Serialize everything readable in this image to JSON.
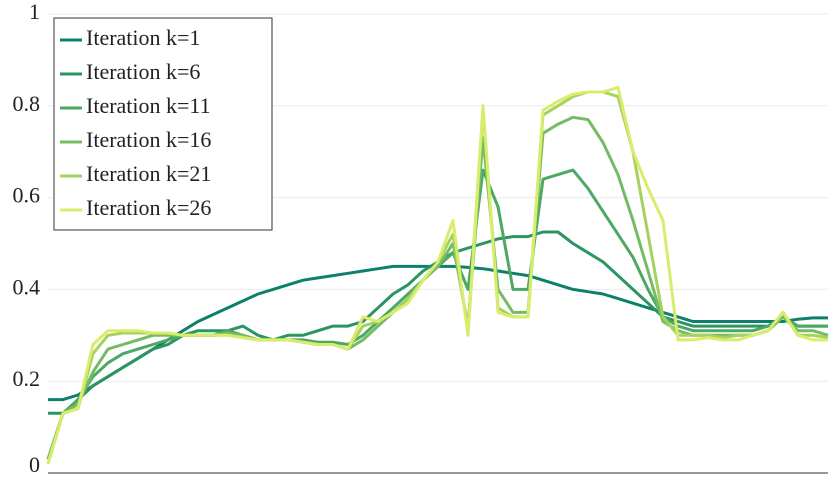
{
  "chart_data": {
    "type": "line",
    "categories": [
      null,
      null,
      null,
      null,
      null,
      null,
      null,
      null,
      null,
      null,
      null,
      null,
      null,
      null,
      null,
      null,
      null,
      null,
      null,
      null,
      null,
      null,
      null,
      null,
      null,
      null,
      null,
      null,
      null,
      null,
      null,
      null,
      null,
      null,
      null,
      null,
      null,
      null,
      null,
      null,
      null,
      null,
      null,
      null,
      null,
      null,
      null,
      null,
      null,
      null,
      null,
      null,
      null
    ],
    "ylim": [
      0,
      1
    ],
    "yticks": [
      0,
      0.2,
      0.4,
      0.6,
      0.8,
      1
    ],
    "grid": true,
    "legend": "upper left",
    "series": [
      {
        "name": "Iteration k=1",
        "color": "#0e7f6b",
        "values": [
          0.16,
          0.16,
          0.17,
          0.19,
          0.21,
          0.23,
          0.25,
          0.27,
          0.29,
          0.31,
          0.33,
          0.345,
          0.36,
          0.375,
          0.39,
          0.4,
          0.41,
          0.42,
          0.425,
          0.43,
          0.435,
          0.44,
          0.445,
          0.45,
          0.45,
          0.45,
          0.45,
          0.45,
          0.448,
          0.445,
          0.44,
          0.435,
          0.43,
          0.42,
          0.41,
          0.4,
          0.395,
          0.39,
          0.38,
          0.37,
          0.36,
          0.35,
          0.34,
          0.33,
          0.33,
          0.33,
          0.33,
          0.33,
          0.33,
          0.33,
          0.335,
          0.338,
          0.338
        ]
      },
      {
        "name": "Iteration k=6",
        "color": "#2b9562",
        "values": [
          0.13,
          0.13,
          0.16,
          0.19,
          0.21,
          0.23,
          0.25,
          0.27,
          0.28,
          0.3,
          0.31,
          0.31,
          0.31,
          0.32,
          0.3,
          0.29,
          0.3,
          0.3,
          0.31,
          0.32,
          0.32,
          0.33,
          0.36,
          0.39,
          0.41,
          0.44,
          0.46,
          0.48,
          0.49,
          0.5,
          0.51,
          0.515,
          0.515,
          0.525,
          0.525,
          0.5,
          0.48,
          0.46,
          0.43,
          0.4,
          0.37,
          0.34,
          0.33,
          0.32,
          0.32,
          0.32,
          0.32,
          0.32,
          0.32,
          0.34,
          0.32,
          0.32,
          0.32
        ]
      },
      {
        "name": "Iteration k=11",
        "color": "#4ca862",
        "values": [
          0.03,
          0.13,
          0.16,
          0.21,
          0.24,
          0.26,
          0.27,
          0.28,
          0.29,
          0.3,
          0.3,
          0.3,
          0.31,
          0.3,
          0.29,
          0.29,
          0.29,
          0.29,
          0.285,
          0.285,
          0.28,
          0.3,
          0.33,
          0.36,
          0.39,
          0.42,
          0.45,
          0.48,
          0.4,
          0.66,
          0.58,
          0.4,
          0.4,
          0.64,
          0.65,
          0.66,
          0.62,
          0.57,
          0.52,
          0.47,
          0.4,
          0.34,
          0.32,
          0.31,
          0.31,
          0.31,
          0.31,
          0.31,
          0.32,
          0.34,
          0.32,
          0.32,
          0.32
        ]
      },
      {
        "name": "Iteration k=16",
        "color": "#74bb64",
        "values": [
          0.03,
          0.13,
          0.15,
          0.22,
          0.27,
          0.28,
          0.29,
          0.3,
          0.3,
          0.3,
          0.3,
          0.3,
          0.305,
          0.3,
          0.29,
          0.29,
          0.29,
          0.285,
          0.28,
          0.28,
          0.27,
          0.29,
          0.32,
          0.35,
          0.38,
          0.42,
          0.45,
          0.5,
          0.32,
          0.73,
          0.4,
          0.35,
          0.35,
          0.74,
          0.76,
          0.775,
          0.77,
          0.72,
          0.65,
          0.55,
          0.44,
          0.33,
          0.31,
          0.3,
          0.3,
          0.3,
          0.3,
          0.3,
          0.31,
          0.34,
          0.31,
          0.31,
          0.3
        ]
      },
      {
        "name": "Iteration k=21",
        "color": "#a5d25e",
        "values": [
          0.02,
          0.13,
          0.14,
          0.26,
          0.3,
          0.305,
          0.305,
          0.305,
          0.305,
          0.3,
          0.3,
          0.3,
          0.3,
          0.295,
          0.29,
          0.29,
          0.29,
          0.285,
          0.28,
          0.28,
          0.27,
          0.32,
          0.33,
          0.35,
          0.38,
          0.42,
          0.46,
          0.52,
          0.31,
          0.79,
          0.36,
          0.34,
          0.34,
          0.78,
          0.8,
          0.82,
          0.83,
          0.83,
          0.82,
          0.7,
          0.52,
          0.34,
          0.3,
          0.3,
          0.3,
          0.295,
          0.3,
          0.3,
          0.31,
          0.35,
          0.3,
          0.3,
          0.295
        ]
      },
      {
        "name": "Iteration k=26",
        "color": "#d9ec6b",
        "values": [
          0.02,
          0.13,
          0.14,
          0.28,
          0.31,
          0.31,
          0.31,
          0.305,
          0.305,
          0.3,
          0.3,
          0.3,
          0.3,
          0.295,
          0.29,
          0.29,
          0.29,
          0.285,
          0.28,
          0.28,
          0.27,
          0.34,
          0.33,
          0.35,
          0.37,
          0.42,
          0.46,
          0.55,
          0.3,
          0.8,
          0.35,
          0.34,
          0.34,
          0.79,
          0.81,
          0.825,
          0.83,
          0.83,
          0.84,
          0.7,
          0.62,
          0.55,
          0.29,
          0.29,
          0.295,
          0.29,
          0.29,
          0.3,
          0.31,
          0.35,
          0.3,
          0.29,
          0.29
        ]
      }
    ]
  }
}
